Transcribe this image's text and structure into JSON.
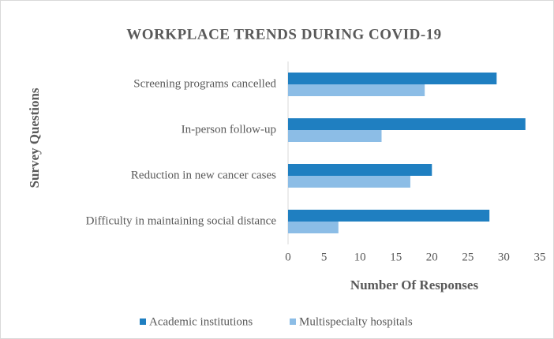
{
  "chart_data": {
    "type": "bar",
    "orientation": "horizontal",
    "title": "WORKPLACE  TRENDS DURING COVID-19",
    "x_label": "Number Of Responses",
    "y_label": "Survey Questions",
    "categories": [
      "Screening programs cancelled",
      "In-person follow-up",
      "Reduction in new cancer cases",
      "Difficulty in maintaining social distance"
    ],
    "series": [
      {
        "name": "Academic institutions",
        "color": "#1f7fc1",
        "values": [
          29,
          33,
          20,
          28
        ]
      },
      {
        "name": "Multispecialty hospitals",
        "color": "#8cbde6",
        "values": [
          19,
          13,
          17,
          7
        ]
      }
    ],
    "xlim": [
      0,
      35
    ],
    "xticks": [
      0,
      5,
      10,
      15,
      20,
      25,
      30,
      35
    ],
    "grid": false,
    "legend": "bottom"
  }
}
